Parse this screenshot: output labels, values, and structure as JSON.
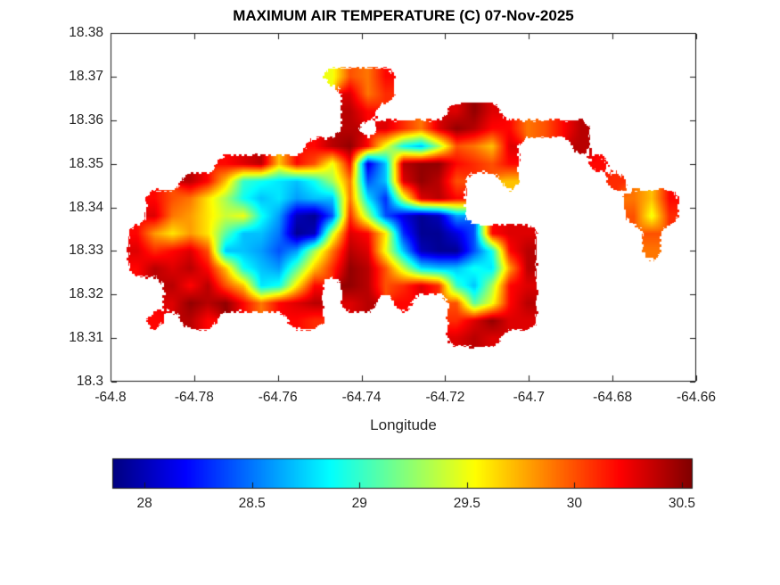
{
  "title": "MAXIMUM AIR TEMPERATURE (C) 07-Nov-2025",
  "colors": {
    "background": "#ffffff",
    "axis": "#1a1a1a",
    "text": "#262626",
    "no_data": "#ffffff"
  },
  "chart_data": {
    "type": "heatmap",
    "title": "MAXIMUM AIR TEMPERATURE (C) 07-Nov-2025",
    "xlabel": "Longitude",
    "ylabel": "",
    "xlim": [
      -64.8,
      -64.66
    ],
    "ylim": [
      18.3,
      18.38
    ],
    "x_tick_labels": [
      "-64.8",
      "-64.78",
      "-64.76",
      "-64.74",
      "-64.72",
      "-64.7",
      "-64.68",
      "-64.66"
    ],
    "y_tick_labels": [
      "18.38",
      "18.37",
      "18.36",
      "18.35",
      "18.34",
      "18.33",
      "18.32",
      "18.31",
      "18.3"
    ],
    "grid_lines": false,
    "colormap": "jet",
    "colorbar": {
      "orientation": "horizontal",
      "vmin": 27.85,
      "vmax": 30.55,
      "tick_labels": [
        "28",
        "28.5",
        "29",
        "29.5",
        "30",
        "30.5"
      ]
    },
    "grid": {
      "note": "Maximum air temperature (C) sampled on a 33x20 lon-lat grid; null = ocean/no data; row 0 = north (lat 18.38), col 0 = west (lon -64.80)",
      "cols": 33,
      "rows": 20,
      "lon_range": [
        -64.8,
        -64.66
      ],
      "lat_range": [
        18.38,
        18.3
      ],
      "values": [
        [
          null,
          null,
          null,
          null,
          null,
          null,
          null,
          null,
          null,
          null,
          null,
          null,
          null,
          null,
          null,
          null,
          null,
          null,
          null,
          null,
          null,
          null,
          null,
          null,
          null,
          null,
          null,
          null,
          null,
          null,
          null,
          null,
          null
        ],
        [
          null,
          null,
          null,
          null,
          null,
          null,
          null,
          null,
          null,
          null,
          null,
          null,
          null,
          null,
          null,
          null,
          null,
          null,
          null,
          null,
          null,
          null,
          null,
          null,
          null,
          null,
          null,
          null,
          null,
          null,
          null,
          null,
          null
        ],
        [
          null,
          null,
          null,
          null,
          null,
          null,
          null,
          null,
          null,
          null,
          null,
          null,
          29.5,
          30,
          29.9,
          30.2,
          null,
          null,
          null,
          null,
          null,
          null,
          null,
          null,
          null,
          null,
          null,
          null,
          null,
          null,
          null,
          null,
          null
        ],
        [
          null,
          null,
          null,
          null,
          null,
          null,
          null,
          null,
          null,
          null,
          null,
          null,
          null,
          30.3,
          29.9,
          30.1,
          null,
          null,
          null,
          null,
          null,
          null,
          null,
          null,
          null,
          null,
          null,
          null,
          null,
          null,
          null,
          null,
          null
        ],
        [
          null,
          null,
          null,
          null,
          null,
          null,
          null,
          null,
          null,
          null,
          null,
          null,
          null,
          30.4,
          30.2,
          null,
          null,
          null,
          null,
          30.3,
          30.5,
          30.3,
          null,
          null,
          null,
          null,
          null,
          null,
          null,
          null,
          null,
          null,
          null
        ],
        [
          null,
          null,
          null,
          null,
          null,
          null,
          null,
          null,
          null,
          null,
          null,
          null,
          null,
          30.4,
          null,
          30.3,
          30.1,
          29.9,
          30.3,
          30.5,
          30.4,
          30.2,
          30.2,
          29.9,
          30,
          30.2,
          30.4,
          null,
          null,
          null,
          null,
          null,
          null
        ],
        [
          null,
          null,
          null,
          null,
          null,
          null,
          null,
          null,
          null,
          null,
          null,
          30.2,
          30.4,
          30.5,
          30.2,
          29.5,
          28.9,
          28.7,
          29.3,
          30,
          29.9,
          29.7,
          30.3,
          null,
          null,
          null,
          30.4,
          null,
          null,
          null,
          null,
          null,
          null
        ],
        [
          null,
          null,
          null,
          null,
          null,
          null,
          30.2,
          30.3,
          30.4,
          29.7,
          30.2,
          30,
          29.5,
          30.2,
          28.1,
          28.7,
          30.4,
          30.5,
          30.5,
          30.2,
          30.1,
          30,
          30.2,
          null,
          null,
          null,
          null,
          30.2,
          null,
          null,
          null,
          null,
          null
        ],
        [
          null,
          null,
          null,
          null,
          30.4,
          30.2,
          29.7,
          29,
          28.9,
          28.8,
          28.7,
          28.9,
          29.3,
          29.9,
          28.4,
          28.7,
          30.3,
          30.5,
          30.4,
          30,
          null,
          null,
          29.7,
          null,
          null,
          null,
          null,
          null,
          30.1,
          null,
          null,
          null,
          null
        ],
        [
          null,
          null,
          30.2,
          30,
          29.9,
          29.6,
          29.3,
          28.9,
          28.7,
          28.8,
          28.6,
          28.7,
          28.7,
          29.9,
          28.8,
          28.3,
          29.4,
          30.3,
          30.4,
          30.2,
          null,
          null,
          null,
          null,
          null,
          null,
          null,
          null,
          null,
          29.9,
          29.7,
          30.2,
          null
        ],
        [
          null,
          null,
          30.3,
          29.9,
          29.8,
          29.6,
          29.4,
          29.5,
          28.9,
          28.6,
          28,
          27.9,
          28.4,
          30.1,
          29.3,
          28.4,
          28.1,
          27.9,
          28,
          28.6,
          null,
          null,
          null,
          null,
          null,
          null,
          null,
          null,
          null,
          30,
          29.5,
          30.1,
          null
        ],
        [
          null,
          30.2,
          29.8,
          29.6,
          29.8,
          29.6,
          29.1,
          28.7,
          28.7,
          28.5,
          27.9,
          28,
          29.4,
          30.3,
          30.2,
          29.6,
          28.3,
          27.9,
          27.9,
          28.1,
          28.4,
          30.2,
          30.3,
          30.3,
          null,
          null,
          null,
          null,
          null,
          null,
          30,
          null,
          null
        ],
        [
          null,
          30.3,
          30.1,
          30.2,
          30.3,
          30,
          28.7,
          28.7,
          28.6,
          28.4,
          28.6,
          29.3,
          29.9,
          30.4,
          30.3,
          29.5,
          28.7,
          28,
          27.9,
          27.9,
          28.4,
          28.9,
          30.2,
          30.4,
          null,
          null,
          null,
          null,
          null,
          null,
          29.9,
          null,
          null
        ],
        [
          null,
          30.2,
          30.4,
          30.3,
          30.4,
          30.2,
          29.7,
          28.9,
          28.7,
          28.6,
          29.1,
          29.7,
          30.1,
          30.5,
          30.4,
          30,
          29.4,
          28.8,
          28.7,
          28.7,
          28.9,
          28.8,
          29.8,
          30.4,
          null,
          null,
          null,
          null,
          null,
          null,
          null,
          null,
          null
        ],
        [
          null,
          null,
          null,
          30.4,
          30.2,
          30.4,
          30,
          29.7,
          28.8,
          28.9,
          29.6,
          30.2,
          null,
          30.5,
          30.4,
          30,
          30.1,
          30.3,
          30.1,
          29,
          28.7,
          29.3,
          30.2,
          30.3,
          null,
          null,
          null,
          null,
          null,
          null,
          null,
          null,
          null
        ],
        [
          null,
          null,
          null,
          30.3,
          30.5,
          30.4,
          30.5,
          30.2,
          29.9,
          30.2,
          30.3,
          30.4,
          null,
          30.3,
          30.4,
          null,
          30.2,
          null,
          null,
          30,
          29.1,
          29.5,
          30.2,
          30.4,
          null,
          null,
          null,
          null,
          null,
          null,
          null,
          null,
          null
        ],
        [
          null,
          null,
          30.2,
          null,
          30.4,
          30.2,
          null,
          null,
          null,
          null,
          30.2,
          30.1,
          null,
          null,
          null,
          null,
          null,
          null,
          null,
          30.1,
          30.3,
          30.5,
          30.3,
          30.3,
          null,
          null,
          null,
          null,
          null,
          null,
          null,
          null,
          null
        ],
        [
          null,
          null,
          null,
          null,
          null,
          null,
          null,
          null,
          null,
          null,
          null,
          null,
          null,
          null,
          null,
          null,
          null,
          null,
          null,
          30.3,
          30.4,
          30.3,
          null,
          null,
          null,
          null,
          null,
          null,
          null,
          null,
          null,
          null,
          null
        ],
        [
          null,
          null,
          null,
          null,
          null,
          null,
          null,
          null,
          null,
          null,
          null,
          null,
          null,
          null,
          null,
          null,
          null,
          null,
          null,
          null,
          null,
          null,
          null,
          null,
          null,
          null,
          null,
          null,
          null,
          null,
          null,
          null,
          null
        ],
        [
          null,
          null,
          null,
          null,
          null,
          null,
          null,
          null,
          null,
          null,
          null,
          null,
          null,
          null,
          null,
          null,
          null,
          null,
          null,
          null,
          null,
          null,
          null,
          null,
          null,
          null,
          null,
          null,
          null,
          null,
          null,
          null,
          null
        ]
      ]
    }
  }
}
